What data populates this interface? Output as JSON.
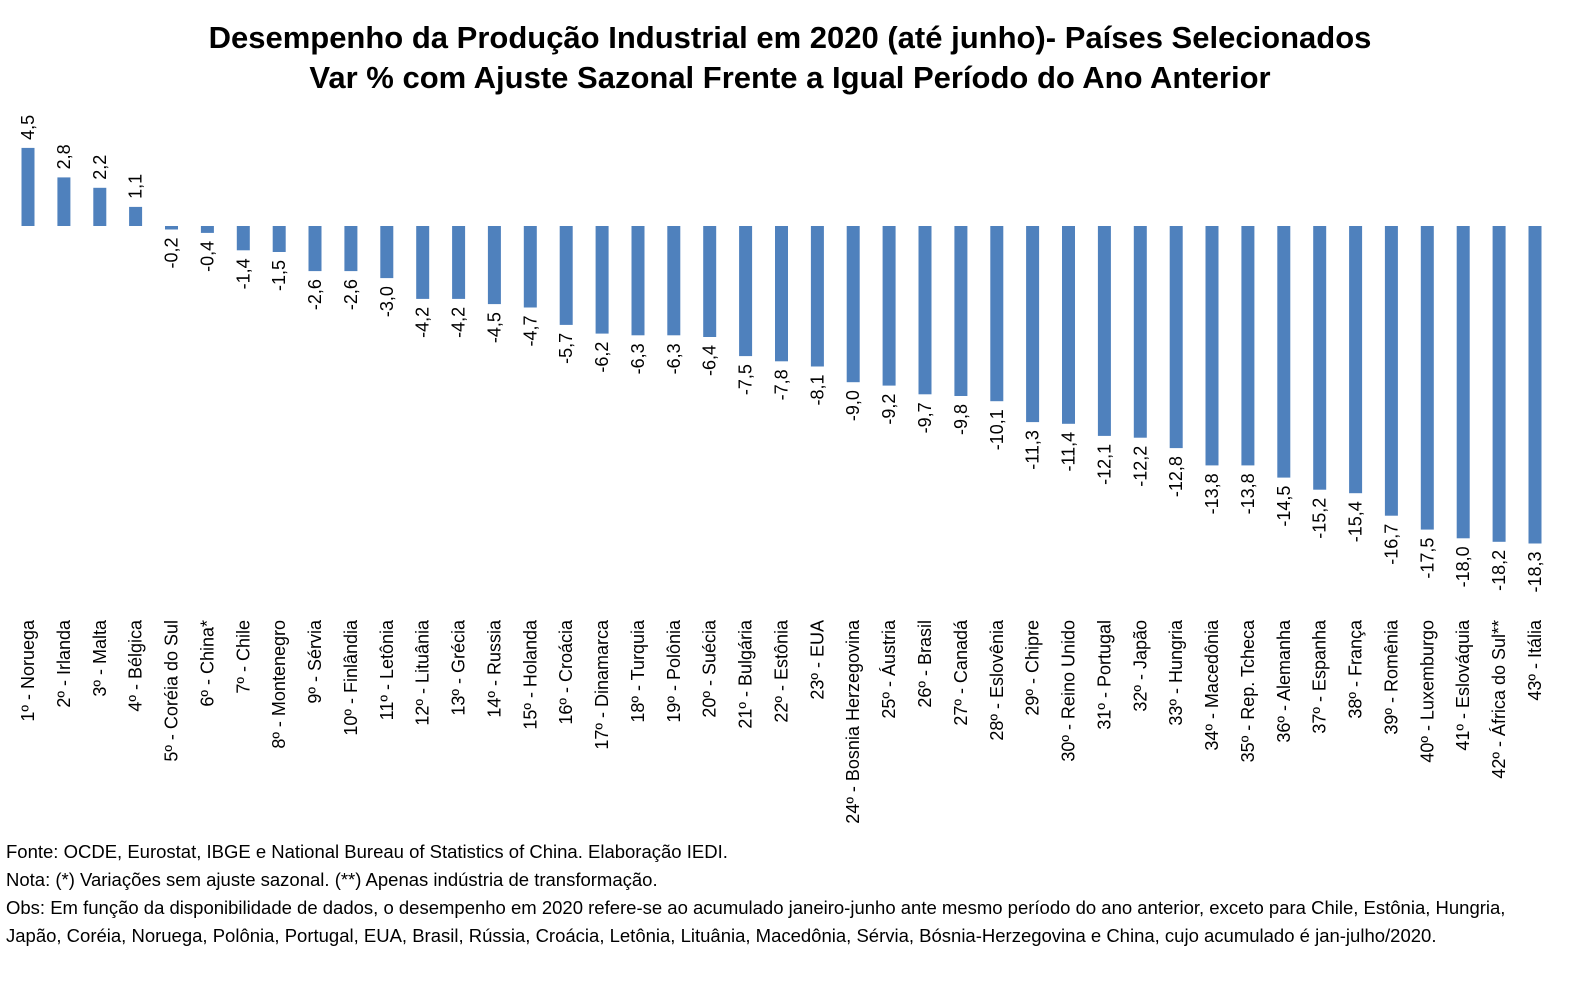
{
  "chart_data": {
    "type": "bar",
    "title": "Desempenho da Produção Industrial em 2020 (até junho)- Países Selecionados",
    "subtitle": "Var % com Ajuste Sazonal Frente a Igual Período do Ano Anterior",
    "xlabel": "",
    "ylabel": "",
    "ylim": [
      -18.3,
      4.5
    ],
    "grid": false,
    "legend": "none",
    "bar_color": "#4F81BD",
    "categories": [
      "1º - Noruega",
      "2º - Irlanda",
      "3º - Malta",
      "4º - Bélgica",
      "5º - Coréia do Sul",
      "6º - China*",
      "7º - Chile",
      "8º - Montenegro",
      "9º - Sérvia",
      "10º - Finlândia",
      "11º - Letônia",
      "12º - Lituânia",
      "13º - Grécia",
      "14º - Russia",
      "15º - Holanda",
      "16º - Croácia",
      "17º - Dinamarca",
      "18º - Turquia",
      "19º - Polônia",
      "20º - Suécia",
      "21º - Bulgária",
      "22º - Estônia",
      "23º - EUA",
      "24º - Bosnia Herzegovina",
      "25º - Áustria",
      "26º - Brasil",
      "27º - Canadá",
      "28º - Eslovênia",
      "29º - Chipre",
      "30º - Reino Unido",
      "31º - Portugal",
      "32º - Japão",
      "33º - Hungria",
      "34º - Macedônia",
      "35º - Rep. Tcheca",
      "36º - Alemanha",
      "37º - Espanha",
      "38º - França",
      "39º - Romênia",
      "40º - Luxemburgo",
      "41º - Eslováquia",
      "42º - África do Sul**",
      "43º - Itália"
    ],
    "values": [
      4.5,
      2.8,
      2.2,
      1.1,
      -0.2,
      -0.4,
      -1.4,
      -1.5,
      -2.6,
      -2.6,
      -3.0,
      -4.2,
      -4.2,
      -4.5,
      -4.7,
      -5.7,
      -6.2,
      -6.3,
      -6.3,
      -6.4,
      -7.5,
      -7.8,
      -8.1,
      -9.0,
      -9.2,
      -9.7,
      -9.8,
      -10.1,
      -11.3,
      -11.4,
      -12.1,
      -12.2,
      -12.8,
      -13.8,
      -13.8,
      -14.5,
      -15.2,
      -15.4,
      -16.7,
      -17.5,
      -18.0,
      -18.2,
      -18.3
    ],
    "value_labels": [
      "4,5",
      "2,8",
      "2,2",
      "1,1",
      "-0,2",
      "-0,4",
      "-1,4",
      "-1,5",
      "-2,6",
      "-2,6",
      "-3,0",
      "-4,2",
      "-4,2",
      "-4,5",
      "-4,7",
      "-5,7",
      "-6,2",
      "-6,3",
      "-6,3",
      "-6,4",
      "-7,5",
      "-7,8",
      "-8,1",
      "-9,0",
      "-9,2",
      "-9,7",
      "-9,8",
      "-10,1",
      "-11,3",
      "-11,4",
      "-12,1",
      "-12,2",
      "-12,8",
      "-13,8",
      "-13,8",
      "-14,5",
      "-15,2",
      "-15,4",
      "-16,7",
      "-17,5",
      "-18,0",
      "-18,2",
      "-18,3"
    ]
  },
  "notes": {
    "source": "Fonte: OCDE, Eurostat, IBGE e National Bureau of Statistics of China. Elaboração IEDI.",
    "note": "Nota: (*) Variações sem ajuste sazonal. (**) Apenas indústria de transformação.",
    "obs": "Obs: Em função da disponibilidade de dados, o desempenho em 2020 refere-se ao acumulado janeiro-junho  ante mesmo período do ano anterior, exceto para Chile, Estônia, Hungria, Japão, Coréia, Noruega, Polônia, Portugal, EUA, Brasil, Rússia, Croácia, Letônia, Lituânia, Macedônia, Sérvia, Bósnia-Herzegovina e China, cujo acumulado é jan-julho/2020."
  }
}
